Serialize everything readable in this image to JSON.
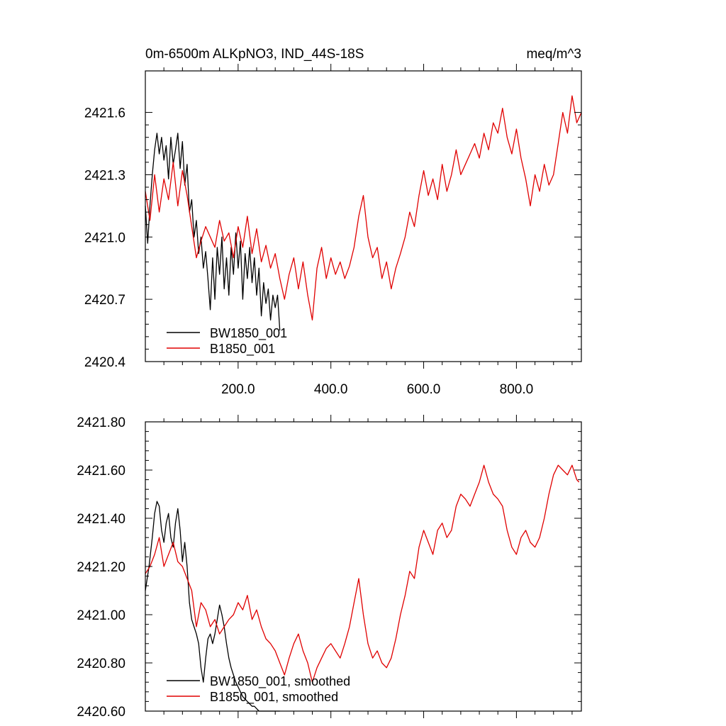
{
  "chart_data": [
    {
      "type": "line",
      "title_left": "0m-6500m ALKpNO3, IND_44S-18S",
      "title_right": "meq/m^3",
      "xlim": [
        0,
        940
      ],
      "ylim": [
        2420.4,
        2421.8
      ],
      "xticks": [
        200,
        400,
        600,
        800
      ],
      "xtick_labels": [
        "200.0",
        "400.0",
        "600.0",
        "800.0"
      ],
      "yticks": [
        2420.4,
        2420.7,
        2421.0,
        2421.3,
        2421.6
      ],
      "ytick_labels": [
        "2420.4",
        "2420.7",
        "2421.0",
        "2421.3",
        "2421.6"
      ],
      "legend_position": "bottom-left",
      "series": [
        {
          "name": "BW1850_001",
          "color": "#000000",
          "x": [
            0,
            5,
            10,
            15,
            20,
            25,
            30,
            35,
            40,
            45,
            50,
            55,
            60,
            65,
            70,
            75,
            80,
            85,
            90,
            95,
            100,
            105,
            110,
            115,
            120,
            125,
            130,
            135,
            140,
            145,
            150,
            155,
            160,
            165,
            170,
            175,
            180,
            185,
            190,
            195,
            200,
            205,
            210,
            215,
            220,
            225,
            230,
            235,
            240,
            245,
            250,
            255,
            260,
            265,
            270,
            275,
            280,
            285,
            290
          ],
          "y": [
            2421.15,
            2420.97,
            2421.15,
            2421.3,
            2421.42,
            2421.5,
            2421.4,
            2421.48,
            2421.37,
            2421.44,
            2421.28,
            2421.48,
            2421.35,
            2421.42,
            2421.5,
            2421.33,
            2421.46,
            2421.25,
            2421.35,
            2421.12,
            2421.18,
            2421.0,
            2421.08,
            2420.92,
            2421.0,
            2420.85,
            2420.93,
            2420.8,
            2420.65,
            2420.9,
            2420.7,
            2420.95,
            2420.82,
            2421.0,
            2420.75,
            2420.9,
            2420.72,
            2420.95,
            2420.82,
            2421.02,
            2420.85,
            2420.98,
            2420.7,
            2420.92,
            2420.8,
            2420.95,
            2420.78,
            2420.9,
            2420.72,
            2420.85,
            2420.62,
            2420.78,
            2420.68,
            2420.75,
            2420.6,
            2420.72,
            2420.66,
            2420.72,
            2420.55
          ]
        },
        {
          "name": "B1850_001",
          "color": "#e00000",
          "x": [
            0,
            10,
            20,
            30,
            40,
            50,
            60,
            70,
            80,
            90,
            100,
            110,
            120,
            130,
            140,
            150,
            160,
            170,
            180,
            190,
            200,
            210,
            220,
            230,
            240,
            250,
            260,
            270,
            280,
            290,
            300,
            310,
            320,
            330,
            340,
            350,
            360,
            370,
            380,
            390,
            400,
            410,
            420,
            430,
            440,
            450,
            460,
            470,
            480,
            490,
            500,
            510,
            520,
            530,
            540,
            550,
            560,
            570,
            580,
            590,
            600,
            610,
            620,
            630,
            640,
            650,
            660,
            670,
            680,
            690,
            700,
            710,
            720,
            730,
            740,
            750,
            760,
            770,
            780,
            790,
            800,
            810,
            820,
            830,
            840,
            850,
            860,
            870,
            880,
            890,
            900,
            910,
            920,
            930,
            940
          ],
          "y": [
            2421.22,
            2421.08,
            2421.3,
            2421.12,
            2421.28,
            2421.18,
            2421.36,
            2421.15,
            2421.32,
            2421.2,
            2421.05,
            2420.9,
            2420.98,
            2421.05,
            2421.0,
            2420.95,
            2421.08,
            2420.98,
            2421.02,
            2420.9,
            2421.05,
            2420.95,
            2421.1,
            2420.92,
            2421.04,
            2420.88,
            2420.96,
            2420.85,
            2420.92,
            2420.8,
            2420.7,
            2420.82,
            2420.9,
            2420.75,
            2420.88,
            2420.72,
            2420.6,
            2420.85,
            2420.95,
            2420.8,
            2420.9,
            2420.82,
            2420.88,
            2420.8,
            2420.86,
            2420.95,
            2421.1,
            2421.2,
            2421.0,
            2420.9,
            2420.95,
            2420.8,
            2420.88,
            2420.75,
            2420.85,
            2420.92,
            2421.0,
            2421.12,
            2421.05,
            2421.2,
            2421.32,
            2421.2,
            2421.28,
            2421.18,
            2421.35,
            2421.22,
            2421.3,
            2421.42,
            2421.3,
            2421.35,
            2421.4,
            2421.45,
            2421.38,
            2421.5,
            2421.42,
            2421.55,
            2421.5,
            2421.62,
            2421.48,
            2421.4,
            2421.52,
            2421.38,
            2421.28,
            2421.15,
            2421.3,
            2421.22,
            2421.35,
            2421.25,
            2421.3,
            2421.45,
            2421.6,
            2421.5,
            2421.68,
            2421.55,
            2421.6
          ]
        }
      ]
    },
    {
      "type": "line",
      "xlim": [
        0,
        940
      ],
      "ylim": [
        2420.6,
        2421.8
      ],
      "yticks": [
        2420.6,
        2420.8,
        2421.0,
        2421.2,
        2421.4,
        2421.6,
        2421.8
      ],
      "ytick_labels": [
        "2420.60",
        "2420.80",
        "2421.00",
        "2421.20",
        "2421.40",
        "2421.60",
        "2421.80"
      ],
      "legend_position": "bottom-left",
      "series": [
        {
          "name": "BW1850_001, smoothed",
          "color": "#000000",
          "x": [
            0,
            8,
            15,
            20,
            25,
            30,
            35,
            40,
            45,
            50,
            55,
            60,
            65,
            70,
            75,
            80,
            85,
            90,
            95,
            100,
            105,
            110,
            115,
            120,
            125,
            130,
            135,
            140,
            145,
            150,
            155,
            160,
            165,
            170,
            175,
            180,
            185,
            190,
            195,
            200,
            205,
            210,
            215,
            220,
            225,
            230,
            235,
            240,
            245,
            250,
            255,
            260,
            265,
            270,
            275,
            280,
            285,
            290
          ],
          "y": [
            2421.1,
            2421.2,
            2421.32,
            2421.42,
            2421.47,
            2421.45,
            2421.35,
            2421.3,
            2421.38,
            2421.42,
            2421.32,
            2421.28,
            2421.38,
            2421.44,
            2421.35,
            2421.22,
            2421.3,
            2421.2,
            2421.05,
            2420.98,
            2420.95,
            2420.92,
            2420.88,
            2420.78,
            2420.72,
            2420.82,
            2420.9,
            2420.92,
            2420.88,
            2420.92,
            2420.98,
            2421.04,
            2421.0,
            2420.95,
            2420.88,
            2420.82,
            2420.78,
            2420.75,
            2420.72,
            2420.7,
            2420.68,
            2420.66,
            2420.65,
            2420.64,
            2420.63,
            2420.62,
            2420.62,
            2420.61,
            2420.6,
            2420.6,
            2420.6,
            2420.6,
            2420.6,
            2420.6,
            2420.6,
            2420.6,
            2420.6,
            2420.6
          ]
        },
        {
          "name": "B1850_001, smoothed",
          "color": "#e00000",
          "x": [
            0,
            10,
            20,
            30,
            40,
            50,
            60,
            70,
            80,
            90,
            100,
            110,
            120,
            130,
            140,
            150,
            160,
            170,
            180,
            190,
            200,
            210,
            220,
            230,
            240,
            250,
            260,
            270,
            280,
            290,
            300,
            310,
            320,
            330,
            340,
            350,
            360,
            370,
            380,
            390,
            400,
            410,
            420,
            430,
            440,
            450,
            460,
            470,
            480,
            490,
            500,
            510,
            520,
            530,
            540,
            550,
            560,
            570,
            580,
            590,
            600,
            610,
            620,
            630,
            640,
            650,
            660,
            670,
            680,
            690,
            700,
            710,
            720,
            730,
            740,
            750,
            760,
            770,
            780,
            790,
            800,
            810,
            820,
            830,
            840,
            850,
            860,
            870,
            880,
            890,
            900,
            910,
            920,
            930,
            935
          ],
          "y": [
            2421.17,
            2421.2,
            2421.25,
            2421.32,
            2421.2,
            2421.25,
            2421.3,
            2421.22,
            2421.2,
            2421.15,
            2421.1,
            2420.95,
            2421.05,
            2421.02,
            2420.95,
            2420.98,
            2420.92,
            2420.95,
            2420.98,
            2421.0,
            2421.05,
            2421.02,
            2421.08,
            2420.98,
            2421.02,
            2420.95,
            2420.9,
            2420.88,
            2420.85,
            2420.8,
            2420.75,
            2420.82,
            2420.88,
            2420.92,
            2420.85,
            2420.8,
            2420.72,
            2420.78,
            2420.82,
            2420.86,
            2420.88,
            2420.85,
            2420.82,
            2420.88,
            2420.95,
            2421.05,
            2421.15,
            2421.0,
            2420.88,
            2420.82,
            2420.85,
            2420.8,
            2420.78,
            2420.82,
            2420.9,
            2421.0,
            2421.08,
            2421.18,
            2421.15,
            2421.28,
            2421.35,
            2421.3,
            2421.25,
            2421.35,
            2421.38,
            2421.32,
            2421.35,
            2421.45,
            2421.5,
            2421.48,
            2421.45,
            2421.5,
            2421.55,
            2421.62,
            2421.55,
            2421.5,
            2421.48,
            2421.45,
            2421.35,
            2421.28,
            2421.25,
            2421.32,
            2421.35,
            2421.3,
            2421.28,
            2421.32,
            2421.4,
            2421.5,
            2421.58,
            2421.62,
            2421.6,
            2421.58,
            2421.62,
            2421.56,
            2421.55
          ]
        }
      ]
    }
  ]
}
